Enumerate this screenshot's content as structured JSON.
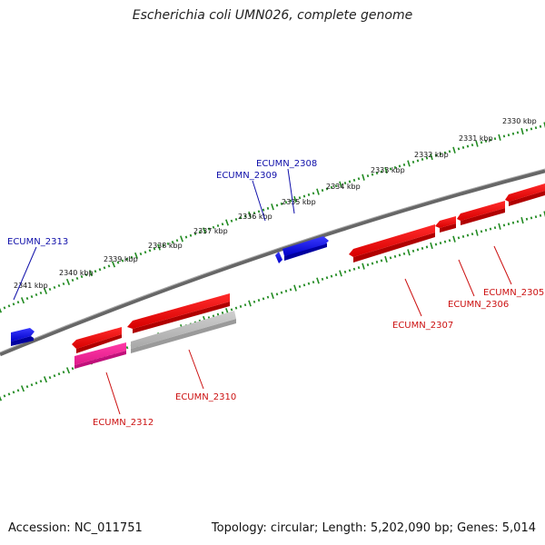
{
  "title": "Escherichia coli UMN026, complete genome",
  "footer": {
    "accession": "Accession: NC_011751",
    "summary": "Topology: circular; Length: 5,202,090 bp; Genes: 5,014"
  },
  "colors": {
    "forward_gene": "#1010ee",
    "reverse_gene": "#ee1010",
    "rna": "#ee2a9e",
    "pseudo": "#b8b8b8",
    "backbone": "#777777",
    "tick": "#228b22",
    "forward_label": "#1010aa",
    "reverse_label": "#cc1111"
  },
  "scale": {
    "unit": "kbp",
    "labels": [
      "2330 kbp",
      "2331 kbp",
      "2332 kbp",
      "2333 kbp",
      "2334 kbp",
      "2335 kbp",
      "2336 kbp",
      "2337 kbp",
      "2338 kbp",
      "2339 kbp",
      "2340 kbp",
      "2341 kbp"
    ]
  },
  "genes": [
    {
      "name": "ECUMN_2313",
      "strand": "forward",
      "type": "gene",
      "label": "ECUMN_2313"
    },
    {
      "name": "ECUMN_2309",
      "strand": "forward",
      "type": "gene",
      "label": "ECUMN_2309"
    },
    {
      "name": "ECUMN_2308",
      "strand": "forward",
      "type": "gene",
      "label": "ECUMN_2308"
    },
    {
      "name": "ECUMN_2312",
      "strand": "reverse",
      "type": "gene",
      "label": "ECUMN_2312"
    },
    {
      "name": "ECUMN_2310",
      "strand": "reverse",
      "type": "gene",
      "label": "ECUMN_2310"
    },
    {
      "name": "ECUMN_2307",
      "strand": "reverse",
      "type": "gene",
      "label": "ECUMN_2307"
    },
    {
      "name": "ECUMN_2306",
      "strand": "reverse",
      "type": "gene",
      "label": "ECUMN_2306"
    },
    {
      "name": "ECUMN_2305",
      "strand": "reverse",
      "type": "gene",
      "label": "ECUMN_2305"
    }
  ]
}
